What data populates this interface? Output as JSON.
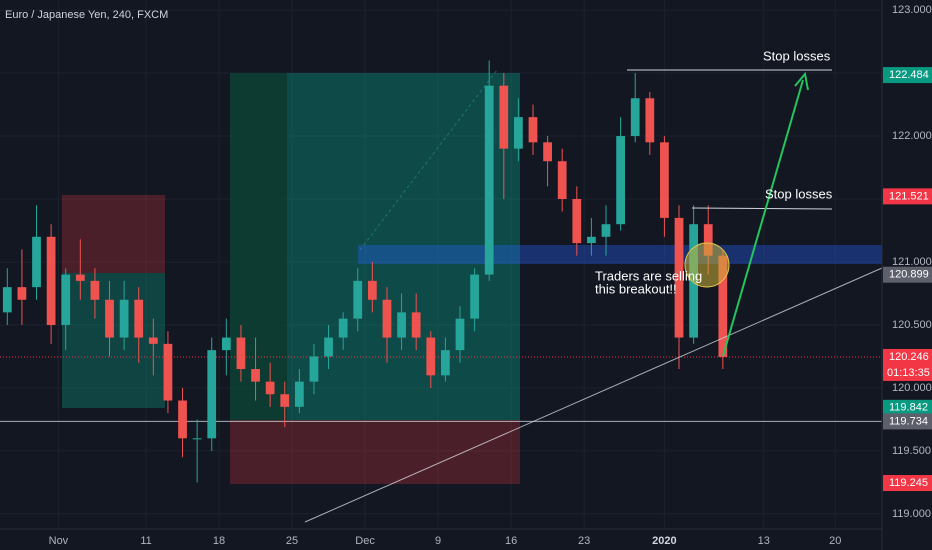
{
  "chart_data": {
    "type": "candlestick",
    "title": "Euro / Japanese Yen, 240, FXCM",
    "x": [
      0,
      1,
      2,
      3,
      4,
      5,
      6,
      7,
      8,
      9,
      10,
      11,
      12,
      13,
      14,
      15,
      16,
      17,
      18,
      19,
      20,
      21,
      22,
      23,
      24,
      25,
      26,
      27,
      28,
      29,
      30,
      31,
      32,
      33,
      34,
      35,
      36,
      37,
      38,
      39,
      40,
      41,
      42,
      43,
      44,
      45,
      46,
      47,
      48,
      49
    ],
    "open": [
      120.6,
      120.8,
      120.8,
      121.2,
      120.5,
      120.9,
      120.85,
      120.7,
      120.4,
      120.7,
      120.4,
      120.35,
      119.9,
      119.6,
      119.6,
      120.3,
      120.4,
      120.15,
      120.05,
      119.95,
      119.85,
      120.05,
      120.25,
      120.4,
      120.55,
      120.85,
      120.7,
      120.4,
      120.6,
      120.4,
      120.1,
      120.3,
      120.55,
      120.9,
      122.4,
      121.9,
      122.15,
      121.95,
      121.8,
      121.5,
      121.15,
      121.2,
      121.3,
      122.0,
      122.3,
      121.95,
      121.35,
      120.4,
      121.3,
      121.05
    ],
    "high": [
      120.95,
      121.1,
      121.45,
      121.3,
      120.95,
      121.18,
      120.95,
      120.85,
      120.85,
      120.8,
      120.55,
      120.45,
      120.0,
      119.75,
      120.4,
      120.55,
      120.5,
      120.4,
      120.2,
      120.05,
      120.15,
      120.35,
      120.5,
      120.6,
      120.95,
      121.0,
      120.8,
      120.75,
      120.75,
      120.45,
      120.4,
      120.65,
      120.95,
      122.6,
      122.5,
      122.3,
      122.25,
      122.0,
      121.9,
      121.6,
      121.35,
      121.45,
      122.15,
      122.5,
      122.35,
      122.0,
      121.45,
      121.45,
      121.45,
      121.1
    ],
    "low": [
      120.5,
      120.5,
      120.7,
      120.35,
      120.3,
      120.7,
      120.55,
      120.25,
      120.3,
      120.2,
      120.1,
      119.8,
      119.45,
      119.25,
      119.5,
      120.1,
      120.05,
      119.9,
      119.85,
      119.69,
      119.8,
      119.95,
      120.15,
      120.3,
      120.45,
      120.6,
      120.2,
      120.3,
      120.3,
      120.0,
      120.05,
      120.2,
      120.45,
      120.85,
      121.5,
      121.8,
      121.85,
      121.6,
      121.4,
      121.05,
      121.05,
      121.05,
      121.25,
      121.95,
      121.85,
      121.2,
      120.15,
      120.35,
      120.9,
      120.15
    ],
    "close": [
      120.8,
      120.7,
      121.2,
      120.5,
      120.9,
      120.85,
      120.7,
      120.4,
      120.7,
      120.4,
      120.35,
      119.9,
      119.6,
      119.6,
      120.3,
      120.4,
      120.15,
      120.05,
      119.95,
      119.85,
      120.05,
      120.25,
      120.4,
      120.55,
      120.85,
      120.7,
      120.4,
      120.6,
      120.4,
      120.1,
      120.3,
      120.55,
      120.9,
      122.4,
      121.9,
      122.15,
      121.95,
      121.8,
      121.5,
      121.15,
      121.2,
      121.3,
      122.0,
      122.3,
      121.95,
      121.35,
      120.4,
      121.3,
      121.05,
      120.246
    ],
    "up_color": "#26a69a",
    "down_color": "#ef5350",
    "xlim": [
      0,
      60.4
    ],
    "xticks": [
      {
        "value": 4,
        "label": "Nov"
      },
      {
        "value": 10,
        "label": "11"
      },
      {
        "value": 15,
        "label": "18"
      },
      {
        "value": 20,
        "label": "25"
      },
      {
        "value": 25,
        "label": "Dec"
      },
      {
        "value": 30,
        "label": "9"
      },
      {
        "value": 35,
        "label": "16"
      },
      {
        "value": 40,
        "label": "23"
      },
      {
        "value": 45.5,
        "label": "2020"
      },
      {
        "value": 52.3,
        "label": "13"
      },
      {
        "value": 57.2,
        "label": "20"
      }
    ],
    "ylim": [
      118.88,
      123.08
    ],
    "yticks": [
      {
        "value": 119,
        "label": "119.000"
      },
      {
        "value": 119.5,
        "label": "119.500"
      },
      {
        "value": 120,
        "label": "120.000"
      },
      {
        "value": 120.5,
        "label": "120.500"
      },
      {
        "value": 121,
        "label": "121.000"
      },
      {
        "value": 121.5,
        "label": "121.500"
      },
      {
        "value": 122,
        "label": "122.000"
      },
      {
        "value": 122.5,
        "label": "122.500"
      },
      {
        "value": 123,
        "label": "123.000"
      }
    ],
    "grid": true,
    "price_labels": [
      {
        "value": 122.484,
        "label": "122.484",
        "color": "#089981"
      },
      {
        "value": 121.521,
        "label": "121.521",
        "color": "#f23645"
      },
      {
        "value": 120.899,
        "label": "120.899",
        "color": "#5d606b"
      },
      {
        "value": 119.842,
        "label": "119.842",
        "color": "#089981"
      },
      {
        "value": 119.734,
        "label": "119.734",
        "color": "#5d606b"
      },
      {
        "value": 119.245,
        "label": "119.245",
        "color": "#f23645"
      }
    ],
    "last_price": {
      "value": 120.246,
      "label": "120.246",
      "countdown": "01:13:35",
      "color": "#f23645"
    },
    "annotations": {
      "stop1": "Stop losses",
      "stop2": "Stop losses",
      "note1": "Traders are selling",
      "note2": "this breakout!!"
    }
  }
}
